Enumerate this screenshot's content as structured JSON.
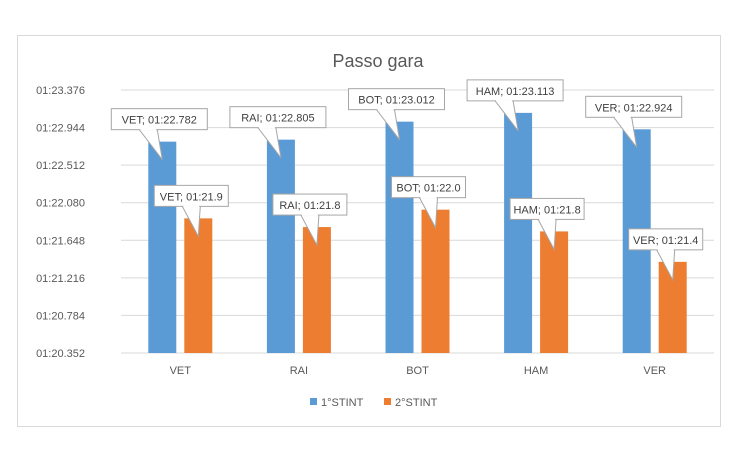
{
  "chart_data": {
    "type": "bar",
    "title": "Passo gara",
    "categories": [
      "VET",
      "RAI",
      "BOT",
      "HAM",
      "VER"
    ],
    "y_ticks": [
      "01:20.352",
      "01:20.784",
      "01:21.216",
      "01:21.648",
      "01:22.080",
      "01:22.512",
      "01:22.944",
      "01:23.376"
    ],
    "ylim": [
      80.352,
      83.376
    ],
    "grid": true,
    "legend_position": "bottom",
    "series": [
      {
        "name": "1°STINT",
        "color": "#5b9bd5",
        "values": [
          82.782,
          82.805,
          83.012,
          83.113,
          82.924
        ],
        "labels": [
          "VET; 01:22.782",
          "RAI; 01:22.805",
          "BOT; 01:23.012",
          "HAM; 01:23.113",
          "VER; 01:22.924"
        ]
      },
      {
        "name": "2°STINT",
        "color": "#ed7d31",
        "values": [
          81.9,
          81.8,
          82.0,
          81.75,
          81.4
        ],
        "labels": [
          "VET; 01:21.9",
          "RAI; 01:21.8",
          "BOT; 01:22.0",
          "HAM; 01:21.8",
          "VER; 01:21.4"
        ]
      }
    ]
  }
}
